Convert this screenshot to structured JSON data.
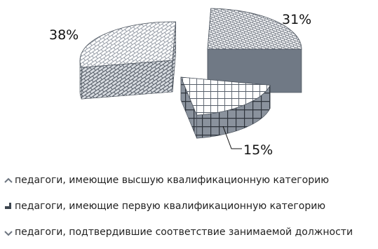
{
  "chart_data": {
    "type": "pie",
    "title": "",
    "slices": [
      {
        "label": "педагоги, имеющие высшую квалификационную категорию",
        "value": 38,
        "display": "38%"
      },
      {
        "label": "педагоги, имеющие первую квалификационную категорию",
        "value": 31,
        "display": "31%"
      },
      {
        "label": "педагоги, подтвердившие соответствие занимаемой должности",
        "value": 15,
        "display": "15%"
      }
    ],
    "legend_position": "bottom",
    "exploded": true,
    "three_d": true
  },
  "colors": {
    "top": "#ffffff",
    "pattern_line": "#6d7580",
    "side": "#7f8895",
    "side_dark": "#3e4650"
  }
}
